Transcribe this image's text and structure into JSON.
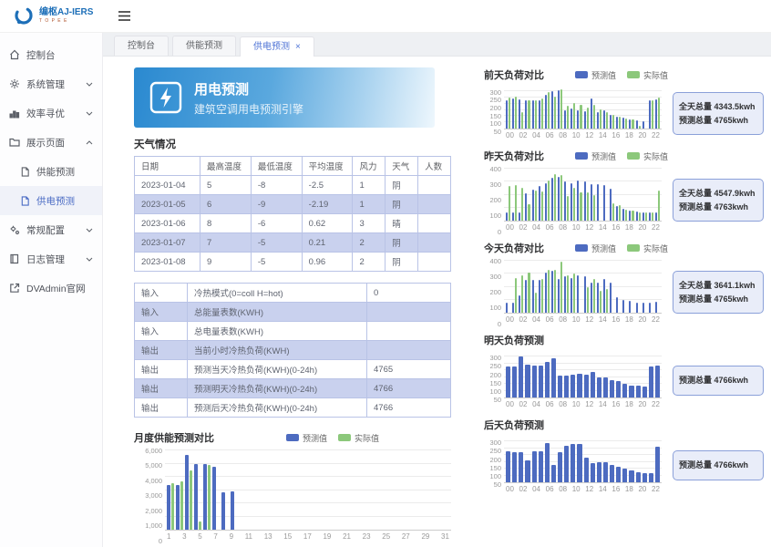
{
  "topbar": {
    "logo_title": "编枢AJ-IERS",
    "logo_sub": "T O P E E"
  },
  "sidebar": {
    "items": [
      {
        "label": "控制台"
      },
      {
        "label": "系统管理"
      },
      {
        "label": "效率寻优"
      },
      {
        "label": "展示页面",
        "children": [
          {
            "label": "供能预测"
          },
          {
            "label": "供电预测"
          }
        ]
      },
      {
        "label": "常规配置"
      },
      {
        "label": "日志管理"
      },
      {
        "label": "DVAdmin官网"
      }
    ]
  },
  "tabs": [
    {
      "label": "控制台"
    },
    {
      "label": "供能预测"
    },
    {
      "label": "供电预测",
      "close_icon": "×"
    }
  ],
  "banner": {
    "title": "用电预测",
    "subtitle": "建筑空调用电预测引擎"
  },
  "sections": {
    "weather_title": "天气情况"
  },
  "tables": {
    "weather": {
      "headers": [
        "日期",
        "最高温度",
        "最低温度",
        "平均温度",
        "风力",
        "天气",
        "人数"
      ],
      "rows": [
        [
          "2023-01-04",
          "5",
          "-8",
          "-2.5",
          "1",
          "阴",
          ""
        ],
        [
          "2023-01-05",
          "6",
          "-9",
          "-2.19",
          "1",
          "阴",
          ""
        ],
        [
          "2023-01-06",
          "8",
          "-6",
          "0.62",
          "3",
          "晴",
          ""
        ],
        [
          "2023-01-07",
          "7",
          "-5",
          "0.21",
          "2",
          "阴",
          ""
        ],
        [
          "2023-01-08",
          "9",
          "-5",
          "0.96",
          "2",
          "阴",
          ""
        ]
      ]
    },
    "io": {
      "rows": [
        [
          "输入",
          "冷热模式(0=coll H=hot)",
          "0"
        ],
        [
          "输入",
          "总能量表数(KWH)",
          ""
        ],
        [
          "输入",
          "总电量表数(KWH)",
          ""
        ],
        [
          "输出",
          "当前小时冷热负荷(KWH)",
          ""
        ],
        [
          "输出",
          "预测当天冷热负荷(KWH)(0-24h)",
          "4765"
        ],
        [
          "输出",
          "预测明天冷热负荷(KWH)(0-24h)",
          "4766"
        ],
        [
          "输出",
          "预测后天冷热负荷(KWH)(0-24h)",
          "4766"
        ]
      ]
    }
  },
  "colors": {
    "predict_blue": "#4d6bc0",
    "actual_green": "#8cc87b"
  },
  "charts": [
    {
      "type": "bar",
      "title": "前天负荷对比",
      "legend": [
        "预测值",
        "实际值"
      ],
      "y_max": 330,
      "y_tick_labels": [
        "300",
        "250",
        "200",
        "150",
        "100",
        "50"
      ],
      "y_tick_values": [
        300,
        250,
        200,
        150,
        100,
        50
      ],
      "x_labels": [
        "00",
        "01",
        "02",
        "03",
        "04",
        "05",
        "06",
        "07",
        "08",
        "09",
        "10",
        "11",
        "12",
        "13",
        "14",
        "15",
        "16",
        "17",
        "18",
        "19",
        "20",
        "21",
        "22",
        "23"
      ],
      "x_tick_labels": [
        "00",
        "02",
        "04",
        "06",
        "08",
        "10",
        "12",
        "14",
        "16",
        "18",
        "20",
        "22"
      ],
      "series": [
        {
          "name": "预测值",
          "color": "#4d6bc0",
          "values": [
            230,
            240,
            235,
            225,
            230,
            230,
            270,
            300,
            310,
            150,
            160,
            150,
            140,
            240,
            130,
            145,
            110,
            95,
            85,
            70,
            65,
            60,
            230,
            235
          ]
        },
        {
          "name": "实际值",
          "color": "#8cc87b",
          "values": [
            250,
            255,
            130,
            225,
            230,
            240,
            290,
            260,
            315,
            180,
            205,
            190,
            170,
            190,
            155,
            130,
            110,
            95,
            80,
            75,
            20,
            0,
            230,
            250
          ]
        }
      ],
      "badge": [
        "全天总量 4343.5kwh",
        "预测总量 4765kwh"
      ]
    },
    {
      "type": "bar",
      "title": "昨天负荷对比",
      "legend": [
        "预测值",
        "实际值"
      ],
      "y_max": 400,
      "y_tick_labels": [
        "400",
        "300",
        "200",
        "100",
        "0"
      ],
      "y_tick_values": [
        400,
        300,
        200,
        100,
        0
      ],
      "x_labels": [
        "00",
        "01",
        "02",
        "03",
        "04",
        "05",
        "06",
        "07",
        "08",
        "09",
        "10",
        "11",
        "12",
        "13",
        "14",
        "15",
        "16",
        "17",
        "18",
        "19",
        "20",
        "21",
        "22",
        "23"
      ],
      "x_tick_labels": [
        "00",
        "02",
        "04",
        "06",
        "08",
        "10",
        "12",
        "14",
        "16",
        "18",
        "20",
        "22"
      ],
      "series": [
        {
          "name": "预测值",
          "color": "#4d6bc0",
          "values": [
            60,
            65,
            60,
            210,
            240,
            270,
            290,
            330,
            340,
            300,
            290,
            310,
            300,
            280,
            280,
            275,
            245,
            110,
            90,
            80,
            70,
            65,
            65,
            60
          ]
        },
        {
          "name": "实际值",
          "color": "#8cc87b",
          "values": [
            270,
            275,
            250,
            125,
            230,
            225,
            310,
            360,
            350,
            190,
            250,
            220,
            215,
            200,
            0,
            0,
            130,
            120,
            85,
            75,
            65,
            60,
            60,
            235
          ]
        }
      ],
      "badge": [
        "全天总量 4547.9kwh",
        "预测总量 4763kwh"
      ]
    },
    {
      "type": "bar",
      "title": "今天负荷对比",
      "legend": [
        "预测值",
        "实际值"
      ],
      "y_max": 400,
      "y_tick_labels": [
        "400",
        "300",
        "200",
        "100",
        "0"
      ],
      "y_tick_values": [
        400,
        300,
        200,
        100,
        0
      ],
      "x_labels": [
        "00",
        "01",
        "02",
        "03",
        "04",
        "05",
        "06",
        "07",
        "08",
        "09",
        "10",
        "11",
        "12",
        "13",
        "14",
        "15",
        "16",
        "17",
        "18",
        "19",
        "20",
        "21",
        "22",
        "23"
      ],
      "x_tick_labels": [
        "00",
        "02",
        "04",
        "06",
        "08",
        "10",
        "12",
        "14",
        "16",
        "18",
        "20",
        "22"
      ],
      "series": [
        {
          "name": "预测值",
          "color": "#4d6bc0",
          "values": [
            75,
            80,
            130,
            255,
            250,
            255,
            310,
            320,
            260,
            280,
            270,
            290,
            280,
            235,
            230,
            260,
            235,
            120,
            100,
            90,
            80,
            80,
            80,
            85
          ]
        },
        {
          "name": "实际值",
          "color": "#8cc87b",
          "values": [
            0,
            270,
            290,
            310,
            155,
            260,
            330,
            330,
            390,
            290,
            300,
            0,
            200,
            260,
            170,
            185,
            0,
            0,
            0,
            0,
            0,
            0,
            0,
            0
          ]
        }
      ],
      "badge": [
        "全天总量 3641.1kwh",
        "预测总量 4765kwh"
      ]
    },
    {
      "type": "bar",
      "title": "明天负荷预测",
      "y_max": 330,
      "y_tick_labels": [
        "300",
        "250",
        "200",
        "150",
        "100",
        "50"
      ],
      "y_tick_values": [
        300,
        250,
        200,
        150,
        100,
        50
      ],
      "x_labels": [
        "00",
        "01",
        "02",
        "03",
        "04",
        "05",
        "06",
        "07",
        "08",
        "09",
        "10",
        "11",
        "12",
        "13",
        "14",
        "15",
        "16",
        "17",
        "18",
        "19",
        "20",
        "21",
        "22",
        "23"
      ],
      "x_tick_labels": [
        "00",
        "02",
        "04",
        "06",
        "08",
        "10",
        "12",
        "14",
        "16",
        "18",
        "20",
        "22"
      ],
      "series": [
        {
          "name": "预测值",
          "color": "#4d6bc0",
          "values": [
            230,
            230,
            300,
            240,
            235,
            235,
            265,
            290,
            160,
            165,
            170,
            175,
            170,
            190,
            150,
            150,
            130,
            120,
            100,
            90,
            85,
            80,
            230,
            235
          ]
        }
      ],
      "badge": [
        "预测总量 4766kwh"
      ]
    },
    {
      "type": "bar",
      "title": "后天负荷预测",
      "y_max": 330,
      "y_tick_labels": [
        "300",
        "250",
        "200",
        "150",
        "100",
        "50"
      ],
      "y_tick_values": [
        300,
        250,
        200,
        150,
        100,
        50
      ],
      "x_labels": [
        "00",
        "01",
        "02",
        "03",
        "04",
        "05",
        "06",
        "07",
        "08",
        "09",
        "10",
        "11",
        "12",
        "13",
        "14",
        "15",
        "16",
        "17",
        "18",
        "19",
        "20",
        "21",
        "22",
        "23"
      ],
      "x_tick_labels": [
        "00",
        "02",
        "04",
        "06",
        "08",
        "10",
        "12",
        "14",
        "16",
        "18",
        "20",
        "22"
      ],
      "series": [
        {
          "name": "预测值",
          "color": "#4d6bc0",
          "values": [
            230,
            225,
            225,
            160,
            230,
            230,
            290,
            130,
            225,
            270,
            280,
            285,
            180,
            140,
            150,
            150,
            130,
            115,
            100,
            90,
            75,
            70,
            70,
            260
          ]
        }
      ],
      "badge": [
        "预测总量 4766kwh"
      ]
    },
    {
      "type": "bar",
      "title": "月度供能预测对比",
      "legend": [
        "预测值",
        "实际值"
      ],
      "y_max": 6000,
      "y_tick_labels": [
        "6,000",
        "5,000",
        "4,000",
        "3,000",
        "2,000",
        "1,000",
        "0"
      ],
      "y_tick_values": [
        6000,
        5000,
        4000,
        3000,
        2000,
        1000,
        0
      ],
      "x_labels": [
        "1",
        "2",
        "3",
        "4",
        "5",
        "6",
        "7",
        "8",
        "9",
        "10",
        "11",
        "12",
        "13",
        "14",
        "15",
        "16",
        "17",
        "18",
        "19",
        "20",
        "21",
        "22",
        "23",
        "24",
        "25",
        "26",
        "27",
        "28",
        "29",
        "30",
        "31"
      ],
      "x_tick_labels": [
        "1",
        "3",
        "5",
        "7",
        "9",
        "11",
        "13",
        "15",
        "17",
        "19",
        "21",
        "23",
        "25",
        "27",
        "29",
        "31"
      ],
      "series": [
        {
          "name": "预测值",
          "color": "#4d6bc0",
          "values": [
            3400,
            3400,
            5650,
            5000,
            5000,
            4750,
            2800,
            2900,
            0,
            0,
            0,
            0,
            0,
            0,
            0,
            0,
            0,
            0,
            0,
            0,
            0,
            0,
            0,
            0,
            0,
            0,
            0,
            0,
            0,
            0,
            0
          ]
        },
        {
          "name": "实际值",
          "color": "#8cc87b",
          "values": [
            3550,
            3650,
            4450,
            600,
            4900,
            0,
            0,
            0,
            0,
            0,
            0,
            0,
            0,
            0,
            0,
            0,
            0,
            0,
            0,
            0,
            0,
            0,
            0,
            0,
            0,
            0,
            0,
            0,
            0,
            0,
            0
          ]
        }
      ]
    }
  ]
}
